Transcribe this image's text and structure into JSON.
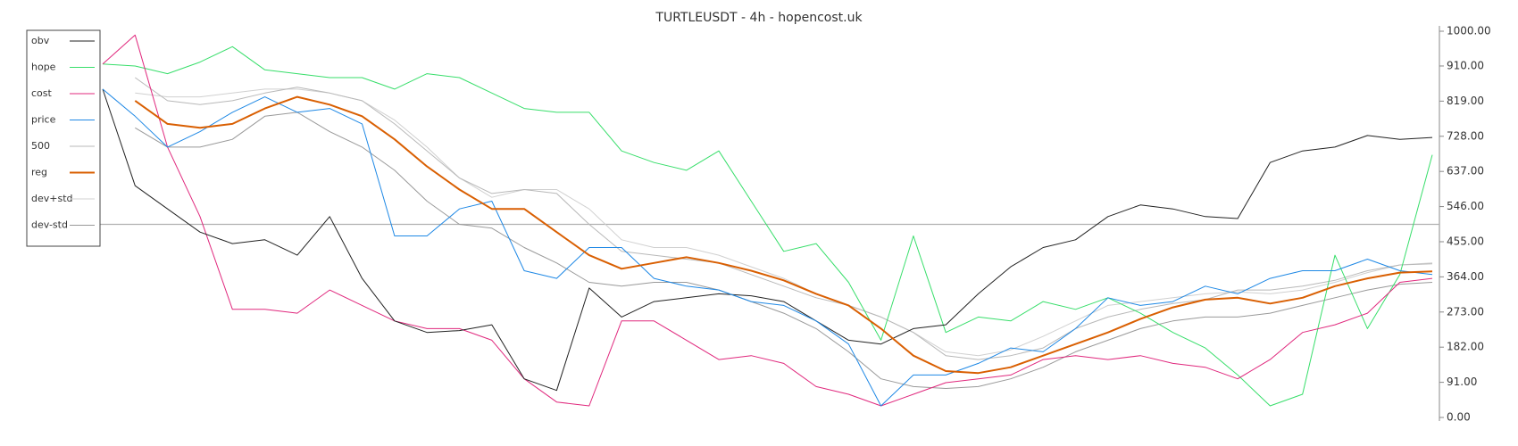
{
  "chart_data": {
    "type": "line",
    "title": "TURTLEUSDT - 4h - hopencost.uk",
    "ylim": [
      0,
      1000
    ],
    "yticks": [
      {
        "value": 0,
        "label": "0.00"
      },
      {
        "value": 91,
        "label": "91.00"
      },
      {
        "value": 182,
        "label": "182.00"
      },
      {
        "value": 273,
        "label": "273.00"
      },
      {
        "value": 364,
        "label": "364.00"
      },
      {
        "value": 455,
        "label": "455.00"
      },
      {
        "value": 546,
        "label": "546.00"
      },
      {
        "value": 637,
        "label": "637.00"
      },
      {
        "value": 728,
        "label": "728.00"
      },
      {
        "value": 819,
        "label": "819.00"
      },
      {
        "value": 910,
        "label": "910.00"
      },
      {
        "value": 1000,
        "label": "1000.00"
      }
    ],
    "y_axis_side": "right",
    "reference_line": {
      "value": 500,
      "color": "#b0b0b0"
    },
    "legend": "upper left",
    "series": [
      {
        "name": "obv",
        "color": "#222222",
        "width": 1,
        "values": [
          850,
          600,
          540,
          480,
          450,
          460,
          420,
          520,
          360,
          250,
          220,
          225,
          240,
          100,
          70,
          335,
          260,
          300,
          310,
          320,
          315,
          300,
          250,
          200,
          190,
          230,
          240,
          320,
          390,
          440,
          460,
          520,
          550,
          540,
          520,
          515,
          660,
          690,
          700,
          730,
          720,
          725
        ]
      },
      {
        "name": "hope",
        "color": "#37de6a",
        "width": 1,
        "values": [
          915,
          910,
          890,
          920,
          960,
          900,
          890,
          880,
          880,
          850,
          890,
          880,
          840,
          800,
          790,
          790,
          690,
          660,
          640,
          690,
          560,
          430,
          450,
          350,
          200,
          470,
          220,
          260,
          250,
          300,
          280,
          310,
          270,
          220,
          180,
          110,
          30,
          60,
          420,
          230,
          370,
          680
        ]
      },
      {
        "name": "cost",
        "color": "#e0287d",
        "width": 1,
        "values": [
          915,
          990,
          700,
          520,
          280,
          280,
          270,
          330,
          290,
          250,
          230,
          230,
          200,
          100,
          40,
          30,
          250,
          250,
          200,
          150,
          160,
          140,
          80,
          60,
          30,
          60,
          90,
          100,
          110,
          150,
          160,
          150,
          160,
          140,
          130,
          100,
          150,
          220,
          240,
          270,
          350,
          360
        ]
      },
      {
        "name": "price",
        "color": "#1e88e5",
        "width": 1,
        "values": [
          850,
          780,
          700,
          740,
          790,
          830,
          790,
          800,
          760,
          470,
          470,
          540,
          560,
          380,
          360,
          440,
          440,
          360,
          340,
          330,
          300,
          290,
          250,
          190,
          30,
          110,
          110,
          140,
          180,
          170,
          230,
          310,
          290,
          300,
          340,
          320,
          360,
          380,
          380,
          410,
          380,
          370
        ]
      },
      {
        "name": "500",
        "color": "#b8b8b8",
        "width": 1,
        "values": [
          null,
          880,
          820,
          810,
          820,
          840,
          855,
          840,
          820,
          760,
          690,
          620,
          580,
          590,
          580,
          500,
          430,
          420,
          410,
          400,
          370,
          340,
          310,
          290,
          260,
          220,
          160,
          150,
          160,
          180,
          230,
          260,
          280,
          295,
          305,
          330,
          330,
          340,
          355,
          380,
          395,
          398
        ]
      },
      {
        "name": "reg",
        "color": "#d95f02",
        "width": 2,
        "values": [
          null,
          820,
          760,
          750,
          760,
          800,
          830,
          810,
          780,
          720,
          650,
          590,
          540,
          540,
          480,
          420,
          385,
          400,
          415,
          400,
          380,
          355,
          320,
          290,
          230,
          160,
          120,
          115,
          130,
          160,
          190,
          220,
          255,
          285,
          305,
          310,
          295,
          310,
          340,
          360,
          375,
          378
        ]
      },
      {
        "name": "dev+std",
        "color": "#d0d0d0",
        "width": 1,
        "values": [
          null,
          840,
          830,
          830,
          840,
          850,
          850,
          840,
          820,
          770,
          700,
          620,
          570,
          590,
          590,
          540,
          460,
          440,
          440,
          420,
          390,
          360,
          320,
          290,
          260,
          220,
          170,
          160,
          175,
          210,
          250,
          290,
          300,
          310,
          320,
          325,
          320,
          330,
          350,
          375,
          395,
          400
        ]
      },
      {
        "name": "dev-std",
        "color": "#999999",
        "width": 1,
        "values": [
          null,
          750,
          700,
          700,
          720,
          780,
          790,
          740,
          700,
          640,
          560,
          500,
          490,
          440,
          400,
          350,
          340,
          350,
          350,
          330,
          300,
          270,
          230,
          170,
          100,
          80,
          75,
          80,
          100,
          130,
          170,
          200,
          230,
          250,
          260,
          260,
          270,
          290,
          310,
          330,
          345,
          350
        ]
      }
    ]
  }
}
